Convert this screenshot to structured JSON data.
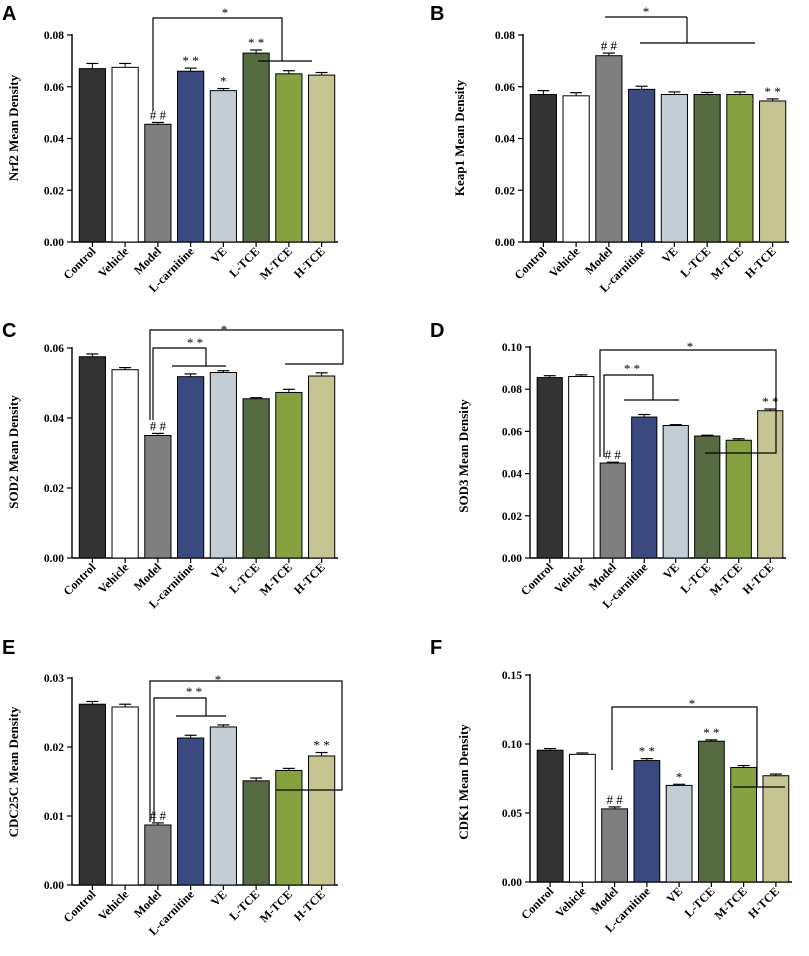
{
  "chart_data": [
    {
      "type": "bar",
      "panel": "A",
      "ylabel": "Nrf2 Mean Density",
      "categories": [
        "Control",
        "Vehicle",
        "Model",
        "L-carnitine",
        "VE",
        "L-TCE",
        "M-TCE",
        "H-TCE"
      ],
      "values": [
        0.067,
        0.0675,
        0.0455,
        0.066,
        0.0585,
        0.073,
        0.065,
        0.0645
      ],
      "errors": [
        0.002,
        0.0015,
        0.0007,
        0.0012,
        0.0008,
        0.0012,
        0.0012,
        0.001
      ],
      "ylim": [
        0,
        0.08
      ],
      "yticks": [
        "0.00",
        "0.02",
        "0.04",
        "0.06",
        "0.08"
      ],
      "bar_labels": [
        "",
        "",
        "# #",
        "* *",
        "*",
        "* *",
        "",
        ""
      ],
      "bracket_label": "*"
    },
    {
      "type": "bar",
      "panel": "B",
      "ylabel": "Keap1 Mean Density",
      "categories": [
        "Control",
        "Vehicle",
        "Model",
        "L-carnitine",
        "VE",
        "L-TCE",
        "M-TCE",
        "H-TCE"
      ],
      "values": [
        0.057,
        0.0565,
        0.072,
        0.059,
        0.057,
        0.057,
        0.057,
        0.0545
      ],
      "errors": [
        0.0015,
        0.0012,
        0.001,
        0.0012,
        0.001,
        0.0008,
        0.001,
        0.0008
      ],
      "ylim": [
        0,
        0.08
      ],
      "yticks": [
        "0.00",
        "0.02",
        "0.04",
        "0.06",
        "0.08"
      ],
      "bar_labels": [
        "",
        "",
        "# #",
        "",
        "",
        "",
        "",
        "* *"
      ],
      "bracket_label": "*"
    },
    {
      "type": "bar",
      "panel": "C",
      "ylabel": "SOD2 Mean Density",
      "categories": [
        "Control",
        "Vehicle",
        "Model",
        "L-carnitine",
        "VE",
        "L-TCE",
        "M-TCE",
        "H-TCE"
      ],
      "values": [
        0.0575,
        0.0538,
        0.035,
        0.0518,
        0.053,
        0.0455,
        0.0473,
        0.052
      ],
      "errors": [
        0.0008,
        0.0006,
        0.0006,
        0.0008,
        0.0005,
        0.0003,
        0.0009,
        0.0009
      ],
      "ylim": [
        0,
        0.06
      ],
      "yticks": [
        "0.00",
        "0.02",
        "0.04",
        "0.06"
      ],
      "bar_labels": [
        "",
        "",
        "# #",
        "",
        "",
        "",
        "",
        ""
      ],
      "bracket_labels": [
        "* *",
        "*"
      ]
    },
    {
      "type": "bar",
      "panel": "D",
      "ylabel": "SOD3 Mean Density",
      "categories": [
        "Control",
        "Vehicle",
        "Model",
        "L-carnitine",
        "VE",
        "L-TCE",
        "M-TCE",
        "H-TCE"
      ],
      "values": [
        0.0855,
        0.086,
        0.045,
        0.0668,
        0.0628,
        0.0578,
        0.0558,
        0.0698
      ],
      "errors": [
        0.0009,
        0.0008,
        0.0004,
        0.0012,
        0.0004,
        0.0004,
        0.0007,
        0.0008
      ],
      "ylim": [
        0,
        0.1
      ],
      "yticks": [
        "0.00",
        "0.02",
        "0.04",
        "0.06",
        "0.08",
        "0.10"
      ],
      "bar_labels": [
        "",
        "",
        "# #",
        "",
        "",
        "",
        "",
        "* *"
      ],
      "bracket_labels": [
        "* *",
        "*"
      ]
    },
    {
      "type": "bar",
      "panel": "E",
      "ylabel": "CDC25C Mean Density",
      "categories": [
        "Control",
        "Vehicle",
        "Model",
        "L-carnitine",
        "VE",
        "L-TCE",
        "M-TCE",
        "H-TCE"
      ],
      "values": [
        0.0262,
        0.0258,
        0.0087,
        0.0213,
        0.0229,
        0.0151,
        0.0166,
        0.0187
      ],
      "errors": [
        0.0004,
        0.0004,
        0.0003,
        0.0004,
        0.0003,
        0.0004,
        0.0003,
        0.0005
      ],
      "ylim": [
        0,
        0.03
      ],
      "yticks": [
        "0.00",
        "0.01",
        "0.02",
        "0.03"
      ],
      "bar_labels": [
        "",
        "",
        "# #",
        "",
        "",
        "",
        "",
        "* *"
      ],
      "bracket_labels": [
        "* *",
        "*"
      ]
    },
    {
      "type": "bar",
      "panel": "F",
      "ylabel": "CDK1 Mean Density",
      "categories": [
        "Control",
        "Vehicle",
        "Model",
        "L-carnitine",
        "VE",
        "L-TCE",
        "M-TCE",
        "H-TCE"
      ],
      "values": [
        0.0955,
        0.0925,
        0.053,
        0.088,
        0.07,
        0.102,
        0.083,
        0.077
      ],
      "errors": [
        0.0012,
        0.001,
        0.0014,
        0.0014,
        0.0008,
        0.001,
        0.0014,
        0.0012
      ],
      "ylim": [
        0,
        0.15
      ],
      "yticks": [
        "0.00",
        "0.05",
        "0.10",
        "0.15"
      ],
      "bar_labels": [
        "",
        "",
        "# #",
        "* *",
        "*",
        "* *",
        "",
        ""
      ],
      "bracket_label": "*"
    }
  ],
  "colors": [
    "#333333",
    "#ffffff",
    "#7f7f7f",
    "#3b4a7e",
    "#c3cdd6",
    "#566b42",
    "#86a240",
    "#c6c491"
  ]
}
